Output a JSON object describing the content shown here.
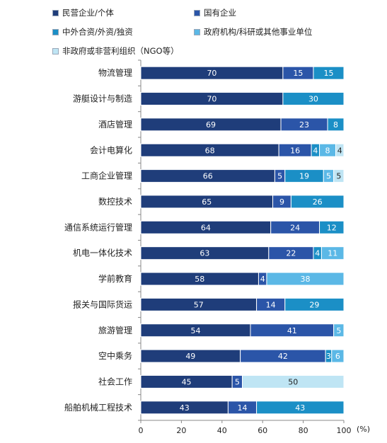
{
  "chart_data": {
    "type": "bar",
    "orientation": "horizontal",
    "stacked": true,
    "categories": [
      "物流管理",
      "游艇设计与制造",
      "酒店管理",
      "会计电算化",
      "工商企业管理",
      "数控技术",
      "通信系统运行管理",
      "机电一体化技术",
      "学前教育",
      "报关与国际货运",
      "旅游管理",
      "空中乘务",
      "社会工作",
      "船舶机械工程技术"
    ],
    "series": [
      {
        "name": "民营企业/个体",
        "color": "#1f3d7a",
        "values": [
          70,
          70,
          69,
          68,
          66,
          65,
          64,
          63,
          58,
          57,
          54,
          49,
          45,
          43
        ]
      },
      {
        "name": "国有企业",
        "color": "#2b55a8",
        "values": [
          15,
          0,
          23,
          16,
          5,
          9,
          24,
          22,
          4,
          14,
          41,
          42,
          5,
          14
        ]
      },
      {
        "name": "中外合资/外资/独资",
        "color": "#1b8fc6",
        "values": [
          15,
          30,
          8,
          4,
          19,
          26,
          12,
          4,
          0,
          29,
          0,
          3,
          0,
          43
        ]
      },
      {
        "name": "政府机构/科研或其他事业单位",
        "color": "#5bb8e6",
        "values": [
          0,
          0,
          0,
          8,
          5,
          0,
          0,
          11,
          38,
          0,
          5,
          6,
          0,
          0
        ]
      },
      {
        "name": "非政府或非营利组织（NGO等）",
        "color": "#bfe5f4",
        "values": [
          0,
          0,
          0,
          4,
          5,
          0,
          0,
          0,
          0,
          0,
          0,
          0,
          50,
          0
        ]
      }
    ],
    "xlim": [
      0,
      100
    ],
    "xticks": [
      0,
      20,
      40,
      60,
      80,
      100
    ],
    "unit": "(%)",
    "legend_position": "top",
    "grid": false
  }
}
